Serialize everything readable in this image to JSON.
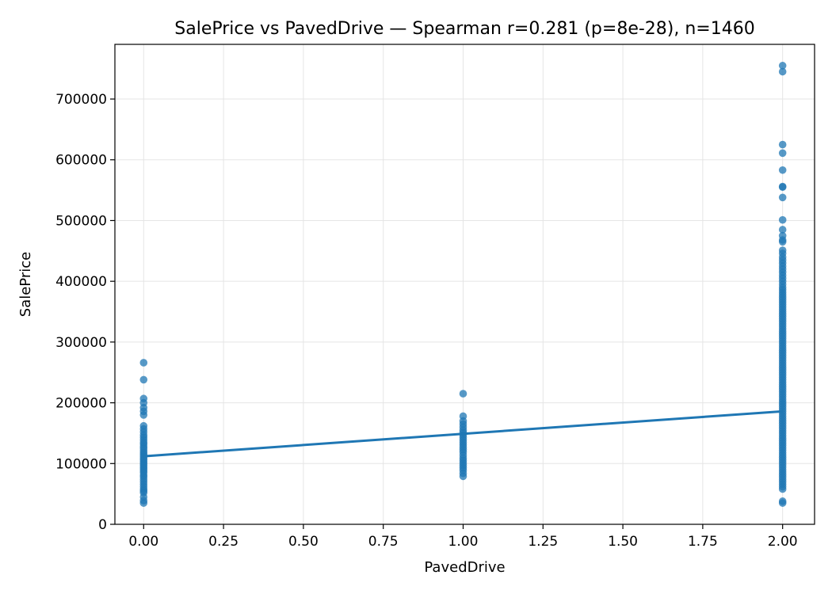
{
  "chart_data": {
    "type": "scatter",
    "title": "SalePrice vs PavedDrive — Spearman r=0.281 (p=8e-28), n=1460",
    "xlabel": "PavedDrive",
    "ylabel": "SalePrice",
    "xlim": [
      -0.09,
      2.1
    ],
    "ylim": [
      0,
      790000
    ],
    "x_ticks": [
      0,
      0.25,
      0.5,
      0.75,
      1,
      1.25,
      1.5,
      1.75,
      2
    ],
    "x_tick_labels": [
      "0.00",
      "0.25",
      "0.50",
      "0.75",
      "1.00",
      "1.25",
      "1.50",
      "1.75",
      "2.00"
    ],
    "y_ticks": [
      0,
      100000,
      200000,
      300000,
      400000,
      500000,
      600000,
      700000
    ],
    "y_tick_labels": [
      "0",
      "100000",
      "200000",
      "300000",
      "400000",
      "500000",
      "600000",
      "700000"
    ],
    "grid": true,
    "colors": {
      "points": "#1f77b4",
      "line": "#1f77b4",
      "grid": "#e5e5e5"
    },
    "points": [
      {
        "x": 0,
        "y": 35000
      },
      {
        "x": 0,
        "y": 39000
      },
      {
        "x": 0,
        "y": 45000
      },
      {
        "x": 0,
        "y": 52000
      },
      {
        "x": 0,
        "y": 55000
      },
      {
        "x": 0,
        "y": 58000
      },
      {
        "x": 0,
        "y": 62000
      },
      {
        "x": 0,
        "y": 66000
      },
      {
        "x": 0,
        "y": 70000
      },
      {
        "x": 0,
        "y": 74000
      },
      {
        "x": 0,
        "y": 78000
      },
      {
        "x": 0,
        "y": 81000
      },
      {
        "x": 0,
        "y": 85000
      },
      {
        "x": 0,
        "y": 88000
      },
      {
        "x": 0,
        "y": 91000
      },
      {
        "x": 0,
        "y": 94000
      },
      {
        "x": 0,
        "y": 97000
      },
      {
        "x": 0,
        "y": 100000
      },
      {
        "x": 0,
        "y": 103000
      },
      {
        "x": 0,
        "y": 106000
      },
      {
        "x": 0,
        "y": 109000
      },
      {
        "x": 0,
        "y": 112000
      },
      {
        "x": 0,
        "y": 115000
      },
      {
        "x": 0,
        "y": 118000
      },
      {
        "x": 0,
        "y": 121000
      },
      {
        "x": 0,
        "y": 125000
      },
      {
        "x": 0,
        "y": 128000
      },
      {
        "x": 0,
        "y": 132000
      },
      {
        "x": 0,
        "y": 135000
      },
      {
        "x": 0,
        "y": 139000
      },
      {
        "x": 0,
        "y": 143000
      },
      {
        "x": 0,
        "y": 147000
      },
      {
        "x": 0,
        "y": 152000
      },
      {
        "x": 0,
        "y": 157000
      },
      {
        "x": 0,
        "y": 162000
      },
      {
        "x": 0,
        "y": 180000
      },
      {
        "x": 0,
        "y": 186000
      },
      {
        "x": 0,
        "y": 192000
      },
      {
        "x": 0,
        "y": 200000
      },
      {
        "x": 0,
        "y": 207000
      },
      {
        "x": 0,
        "y": 238000
      },
      {
        "x": 0,
        "y": 266000
      },
      {
        "x": 1,
        "y": 79000
      },
      {
        "x": 1,
        "y": 84000
      },
      {
        "x": 1,
        "y": 89000
      },
      {
        "x": 1,
        "y": 93000
      },
      {
        "x": 1,
        "y": 97000
      },
      {
        "x": 1,
        "y": 101000
      },
      {
        "x": 1,
        "y": 105000
      },
      {
        "x": 1,
        "y": 109000
      },
      {
        "x": 1,
        "y": 114000
      },
      {
        "x": 1,
        "y": 119000
      },
      {
        "x": 1,
        "y": 123000
      },
      {
        "x": 1,
        "y": 127000
      },
      {
        "x": 1,
        "y": 131000
      },
      {
        "x": 1,
        "y": 135000
      },
      {
        "x": 1,
        "y": 139000
      },
      {
        "x": 1,
        "y": 143000
      },
      {
        "x": 1,
        "y": 147000
      },
      {
        "x": 1,
        "y": 151000
      },
      {
        "x": 1,
        "y": 155000
      },
      {
        "x": 1,
        "y": 160000
      },
      {
        "x": 1,
        "y": 165000
      },
      {
        "x": 1,
        "y": 170000
      },
      {
        "x": 1,
        "y": 178000
      },
      {
        "x": 1,
        "y": 215000
      },
      {
        "x": 2,
        "y": 35000
      },
      {
        "x": 2,
        "y": 38000
      },
      {
        "x": 2,
        "y": 58000
      },
      {
        "x": 2,
        "y": 62000
      },
      {
        "x": 2,
        "y": 66000
      },
      {
        "x": 2,
        "y": 70000
      },
      {
        "x": 2,
        "y": 74000
      },
      {
        "x": 2,
        "y": 78000
      },
      {
        "x": 2,
        "y": 82000
      },
      {
        "x": 2,
        "y": 86000
      },
      {
        "x": 2,
        "y": 90000
      },
      {
        "x": 2,
        "y": 94000
      },
      {
        "x": 2,
        "y": 98000
      },
      {
        "x": 2,
        "y": 102000
      },
      {
        "x": 2,
        "y": 106000
      },
      {
        "x": 2,
        "y": 110000
      },
      {
        "x": 2,
        "y": 114000
      },
      {
        "x": 2,
        "y": 118000
      },
      {
        "x": 2,
        "y": 122000
      },
      {
        "x": 2,
        "y": 126000
      },
      {
        "x": 2,
        "y": 130000
      },
      {
        "x": 2,
        "y": 134000
      },
      {
        "x": 2,
        "y": 138000
      },
      {
        "x": 2,
        "y": 142000
      },
      {
        "x": 2,
        "y": 146000
      },
      {
        "x": 2,
        "y": 150000
      },
      {
        "x": 2,
        "y": 154000
      },
      {
        "x": 2,
        "y": 158000
      },
      {
        "x": 2,
        "y": 162000
      },
      {
        "x": 2,
        "y": 166000
      },
      {
        "x": 2,
        "y": 170000
      },
      {
        "x": 2,
        "y": 174000
      },
      {
        "x": 2,
        "y": 178000
      },
      {
        "x": 2,
        "y": 182000
      },
      {
        "x": 2,
        "y": 186000
      },
      {
        "x": 2,
        "y": 190000
      },
      {
        "x": 2,
        "y": 194000
      },
      {
        "x": 2,
        "y": 198000
      },
      {
        "x": 2,
        "y": 202000
      },
      {
        "x": 2,
        "y": 206000
      },
      {
        "x": 2,
        "y": 210000
      },
      {
        "x": 2,
        "y": 214000
      },
      {
        "x": 2,
        "y": 218000
      },
      {
        "x": 2,
        "y": 222000
      },
      {
        "x": 2,
        "y": 226000
      },
      {
        "x": 2,
        "y": 230000
      },
      {
        "x": 2,
        "y": 234000
      },
      {
        "x": 2,
        "y": 238000
      },
      {
        "x": 2,
        "y": 242000
      },
      {
        "x": 2,
        "y": 246000
      },
      {
        "x": 2,
        "y": 250000
      },
      {
        "x": 2,
        "y": 254000
      },
      {
        "x": 2,
        "y": 258000
      },
      {
        "x": 2,
        "y": 262000
      },
      {
        "x": 2,
        "y": 266000
      },
      {
        "x": 2,
        "y": 270000
      },
      {
        "x": 2,
        "y": 274000
      },
      {
        "x": 2,
        "y": 278000
      },
      {
        "x": 2,
        "y": 282000
      },
      {
        "x": 2,
        "y": 286000
      },
      {
        "x": 2,
        "y": 290000
      },
      {
        "x": 2,
        "y": 294000
      },
      {
        "x": 2,
        "y": 298000
      },
      {
        "x": 2,
        "y": 302000
      },
      {
        "x": 2,
        "y": 306000
      },
      {
        "x": 2,
        "y": 310000
      },
      {
        "x": 2,
        "y": 314000
      },
      {
        "x": 2,
        "y": 318000
      },
      {
        "x": 2,
        "y": 322000
      },
      {
        "x": 2,
        "y": 326000
      },
      {
        "x": 2,
        "y": 330000
      },
      {
        "x": 2,
        "y": 334000
      },
      {
        "x": 2,
        "y": 338000
      },
      {
        "x": 2,
        "y": 342000
      },
      {
        "x": 2,
        "y": 346000
      },
      {
        "x": 2,
        "y": 350000
      },
      {
        "x": 2,
        "y": 354000
      },
      {
        "x": 2,
        "y": 358000
      },
      {
        "x": 2,
        "y": 362000
      },
      {
        "x": 2,
        "y": 366000
      },
      {
        "x": 2,
        "y": 370000
      },
      {
        "x": 2,
        "y": 374000
      },
      {
        "x": 2,
        "y": 378000
      },
      {
        "x": 2,
        "y": 382000
      },
      {
        "x": 2,
        "y": 386000
      },
      {
        "x": 2,
        "y": 390000
      },
      {
        "x": 2,
        "y": 395000
      },
      {
        "x": 2,
        "y": 400000
      },
      {
        "x": 2,
        "y": 405000
      },
      {
        "x": 2,
        "y": 410000
      },
      {
        "x": 2,
        "y": 415000
      },
      {
        "x": 2,
        "y": 420000
      },
      {
        "x": 2,
        "y": 425000
      },
      {
        "x": 2,
        "y": 430000
      },
      {
        "x": 2,
        "y": 435000
      },
      {
        "x": 2,
        "y": 440000
      },
      {
        "x": 2,
        "y": 446000
      },
      {
        "x": 2,
        "y": 451000
      },
      {
        "x": 2,
        "y": 465000
      },
      {
        "x": 2,
        "y": 468000
      },
      {
        "x": 2,
        "y": 475000
      },
      {
        "x": 2,
        "y": 485000
      },
      {
        "x": 2,
        "y": 501000
      },
      {
        "x": 2,
        "y": 538000
      },
      {
        "x": 2,
        "y": 555000
      },
      {
        "x": 2,
        "y": 556000
      },
      {
        "x": 2,
        "y": 583000
      },
      {
        "x": 2,
        "y": 611000
      },
      {
        "x": 2,
        "y": 625000
      },
      {
        "x": 2,
        "y": 745000
      },
      {
        "x": 2,
        "y": 755000
      }
    ],
    "trend_line": {
      "x": [
        0,
        2
      ],
      "y": [
        112000,
        186000
      ]
    }
  }
}
